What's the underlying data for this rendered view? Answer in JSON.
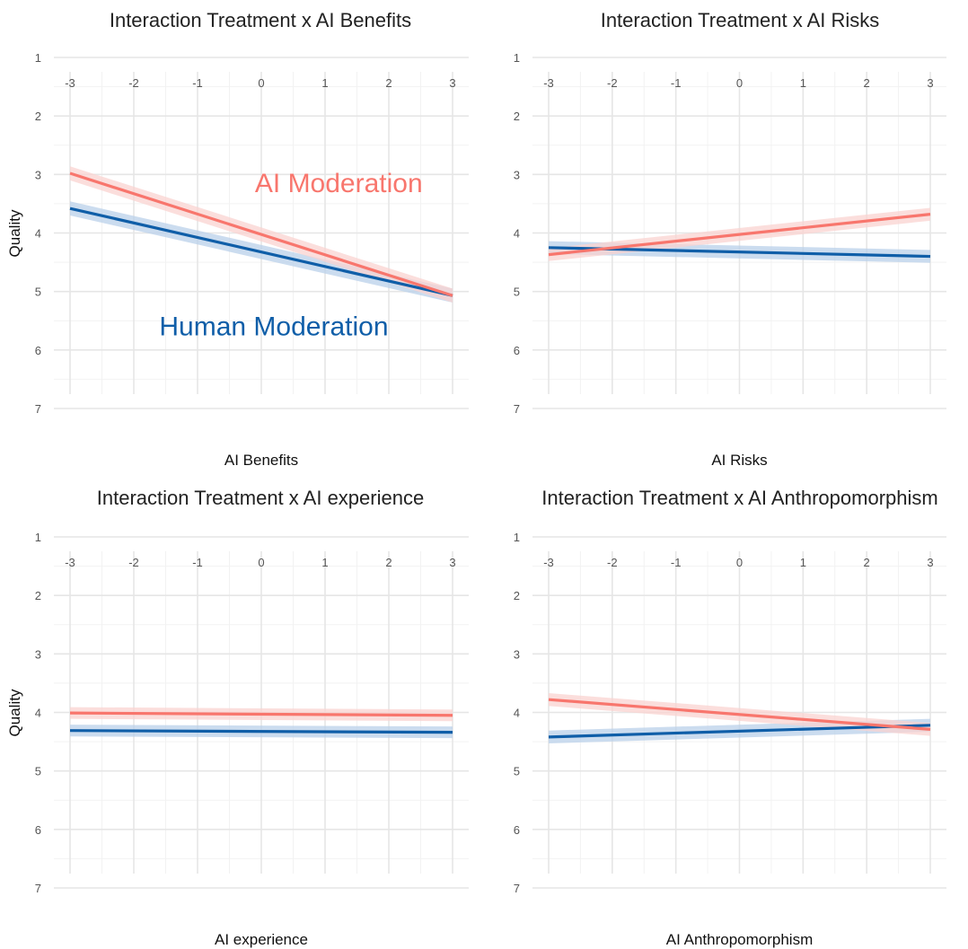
{
  "colors": {
    "human": "#0F5EA8",
    "human_band": "#B9D0EA",
    "ai": "#F8766D",
    "ai_band": "#FAD3D0"
  },
  "chart_data": [
    {
      "type": "line",
      "title": "Interaction Treatment x AI Benefits",
      "xlabel": "AI Benefits",
      "ylabel": "Quality",
      "xlim": [
        -3,
        3
      ],
      "ylim": [
        1,
        7
      ],
      "x_ticks": [
        "-3",
        "-2",
        "-1",
        "0",
        "1",
        "2",
        "3"
      ],
      "y_ticks": [
        "1",
        "2",
        "3",
        "4",
        "5",
        "6",
        "7"
      ],
      "grid": true,
      "annotations": [
        {
          "text": "Human Moderation",
          "series": "human",
          "at": [
            -1.6,
            5.75
          ]
        },
        {
          "text": "AI Moderation",
          "series": "ai",
          "at": [
            -0.1,
            3.3
          ]
        }
      ],
      "series": [
        {
          "key": "human",
          "x": [
            -3,
            3
          ],
          "y": [
            3.58,
            5.07
          ],
          "ci_half_width": 0.12
        },
        {
          "key": "ai",
          "x": [
            -3,
            3
          ],
          "y": [
            2.98,
            5.07
          ],
          "ci_half_width": 0.12
        }
      ]
    },
    {
      "type": "line",
      "title": "Interaction Treatment x AI Risks",
      "xlabel": "AI Risks",
      "ylabel": "",
      "xlim": [
        -3,
        3
      ],
      "ylim": [
        1,
        7
      ],
      "x_ticks": [
        "-3",
        "-2",
        "-1",
        "0",
        "1",
        "2",
        "3"
      ],
      "y_ticks": [
        "1",
        "2",
        "3",
        "4",
        "5",
        "6",
        "7"
      ],
      "grid": true,
      "series": [
        {
          "key": "human",
          "x": [
            -3,
            3
          ],
          "y": [
            4.25,
            4.4
          ],
          "ci_half_width": 0.11
        },
        {
          "key": "ai",
          "x": [
            -3,
            3
          ],
          "y": [
            4.37,
            3.68
          ],
          "ci_half_width": 0.11
        }
      ]
    },
    {
      "type": "line",
      "title": "Interaction Treatment x AI experience",
      "xlabel": "AI experience",
      "ylabel": "Quality",
      "xlim": [
        -3,
        3
      ],
      "ylim": [
        1,
        7
      ],
      "x_ticks": [
        "-3",
        "-2",
        "-1",
        "0",
        "1",
        "2",
        "3"
      ],
      "y_ticks": [
        "1",
        "2",
        "3",
        "4",
        "5",
        "6",
        "7"
      ],
      "grid": true,
      "series": [
        {
          "key": "human",
          "x": [
            -3,
            3
          ],
          "y": [
            4.31,
            4.34
          ],
          "ci_half_width": 0.1
        },
        {
          "key": "ai",
          "x": [
            -3,
            3
          ],
          "y": [
            4.01,
            4.05
          ],
          "ci_half_width": 0.1
        }
      ]
    },
    {
      "type": "line",
      "title": "Interaction Treatment x AI Anthropomorphism",
      "xlabel": "AI Anthropomorphism",
      "ylabel": "",
      "xlim": [
        -3,
        3
      ],
      "ylim": [
        1,
        7
      ],
      "x_ticks": [
        "-3",
        "-2",
        "-1",
        "0",
        "1",
        "2",
        "3"
      ],
      "y_ticks": [
        "1",
        "2",
        "3",
        "4",
        "5",
        "6",
        "7"
      ],
      "grid": true,
      "series": [
        {
          "key": "human",
          "x": [
            -3,
            3
          ],
          "y": [
            4.42,
            4.22
          ],
          "ci_half_width": 0.11
        },
        {
          "key": "ai",
          "x": [
            -3,
            3
          ],
          "y": [
            3.78,
            4.29
          ],
          "ci_half_width": 0.11
        }
      ]
    }
  ]
}
